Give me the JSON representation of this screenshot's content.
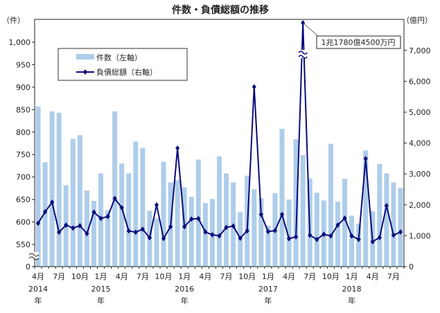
{
  "chart_data": {
    "type": "bar+line",
    "title": "件数・負債総額の推移",
    "left_axis_unit": "（件）",
    "right_axis_unit": "（億円）",
    "left_ticks": [
      "0",
      "550",
      "600",
      "650",
      "700",
      "750",
      "800",
      "850",
      "900",
      "950",
      "1,000"
    ],
    "left_tick_values": [
      0,
      550,
      600,
      650,
      700,
      750,
      800,
      850,
      900,
      950,
      1000
    ],
    "right_ticks": [
      "0",
      "1,000",
      "2,000",
      "3,000",
      "4,000",
      "5,000",
      "6,000",
      "7,000"
    ],
    "right_tick_values": [
      0,
      1000,
      2000,
      3000,
      4000,
      5000,
      6000,
      7000
    ],
    "left_axis_break": [
      0,
      550
    ],
    "right_axis_range": [
      0,
      8000
    ],
    "x_tick_labels": [
      "4月",
      "7月",
      "10月",
      "1月",
      "4月",
      "7月",
      "10月",
      "1月",
      "4月",
      "7月",
      "10月",
      "1月",
      "4月",
      "7月",
      "10月",
      "1月",
      "4月",
      "7月"
    ],
    "year_labels": [
      {
        "index": 0,
        "year": "2014",
        "suffix": "年"
      },
      {
        "index": 9,
        "year": "2015",
        "suffix": "年"
      },
      {
        "index": 21,
        "year": "2016",
        "suffix": "年"
      },
      {
        "index": 33,
        "year": "2017",
        "suffix": "年"
      },
      {
        "index": 45,
        "year": "2018",
        "suffix": "年"
      }
    ],
    "period": "2014-04 to 2018-08 (monthly)",
    "series": [
      {
        "name": "件数（左軸）",
        "type": "bar",
        "axis": "left",
        "color": "#aecde9",
        "values": [
          857,
          733,
          846,
          843,
          682,
          785,
          793,
          670,
          647,
          708,
          626,
          846,
          730,
          708,
          779,
          765,
          625,
          608,
          734,
          688,
          693,
          677,
          656,
          739,
          642,
          651,
          746,
          708,
          688,
          622,
          703,
          673,
          653,
          592,
          664,
          807,
          650,
          784,
          749,
          697,
          665,
          648,
          774,
          645,
          696,
          614,
          596,
          759,
          624,
          729,
          708,
          688,
          676
        ]
      },
      {
        "name": "負債総額（右軸）",
        "type": "line",
        "axis": "right",
        "color": "#0a0a7a",
        "values": [
          1405,
          1771,
          2085,
          1114,
          1345,
          1248,
          1323,
          1069,
          1764,
          1562,
          1622,
          2205,
          1906,
          1158,
          1114,
          1211,
          934,
          1996,
          912,
          1293,
          3834,
          1293,
          1540,
          1555,
          1121,
          1031,
          994,
          1270,
          1314,
          919,
          1158,
          5818,
          1688,
          1135,
          1165,
          1688,
          904,
          964,
          11780.45,
          1016,
          881,
          1046,
          993,
          1345,
          1568,
          993,
          881,
          3495,
          807,
          941,
          1972,
          1016,
          1121
        ]
      }
    ],
    "annotation": {
      "index": 38,
      "text": "1兆1780億4500万円"
    },
    "legend_placement": "top-left",
    "grid": false
  }
}
